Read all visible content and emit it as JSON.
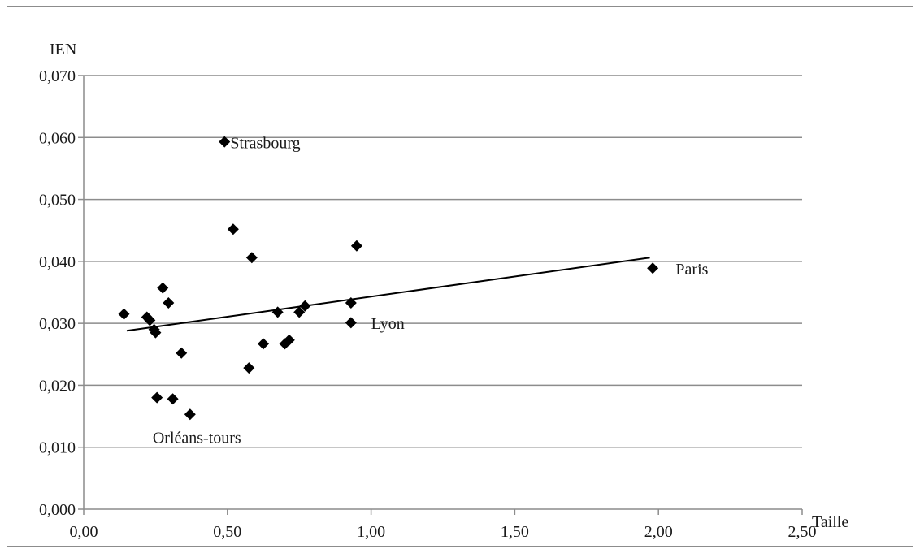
{
  "chart_data": {
    "type": "scatter",
    "title": "",
    "xlabel": "Taille",
    "ylabel": "IEN",
    "xlim": [
      0,
      2.5
    ],
    "ylim": [
      0,
      0.07
    ],
    "x_ticks": [
      0,
      0.5,
      1.0,
      1.5,
      2.0,
      2.5
    ],
    "x_tick_labels": [
      "0,00",
      "0,50",
      "1,00",
      "1,50",
      "2,00",
      "2,50"
    ],
    "y_ticks": [
      0,
      0.01,
      0.02,
      0.03,
      0.04,
      0.05,
      0.06,
      0.07
    ],
    "y_tick_labels": [
      "0,000",
      "0,010",
      "0,020",
      "0,030",
      "0,040",
      "0,050",
      "0,060",
      "0,070"
    ],
    "grid": "horizontal",
    "legend": "none",
    "marker": "diamond",
    "colors": {
      "points": "#000000",
      "grid": "#8c8c8c",
      "trendline": "#000000"
    },
    "points": [
      {
        "x": 0.14,
        "y": 0.0315
      },
      {
        "x": 0.22,
        "y": 0.031
      },
      {
        "x": 0.23,
        "y": 0.0305
      },
      {
        "x": 0.245,
        "y": 0.029
      },
      {
        "x": 0.25,
        "y": 0.0285
      },
      {
        "x": 0.255,
        "y": 0.018
      },
      {
        "x": 0.275,
        "y": 0.0357
      },
      {
        "x": 0.295,
        "y": 0.0333
      },
      {
        "x": 0.31,
        "y": 0.0178
      },
      {
        "x": 0.34,
        "y": 0.0252
      },
      {
        "x": 0.37,
        "y": 0.0153
      },
      {
        "x": 0.49,
        "y": 0.0593
      },
      {
        "x": 0.52,
        "y": 0.0452
      },
      {
        "x": 0.575,
        "y": 0.0228
      },
      {
        "x": 0.585,
        "y": 0.0406
      },
      {
        "x": 0.625,
        "y": 0.0267
      },
      {
        "x": 0.675,
        "y": 0.0318
      },
      {
        "x": 0.7,
        "y": 0.0267
      },
      {
        "x": 0.715,
        "y": 0.0273
      },
      {
        "x": 0.75,
        "y": 0.0318
      },
      {
        "x": 0.77,
        "y": 0.0328
      },
      {
        "x": 0.93,
        "y": 0.0333
      },
      {
        "x": 0.93,
        "y": 0.0301
      },
      {
        "x": 0.95,
        "y": 0.0425
      },
      {
        "x": 1.98,
        "y": 0.0389
      }
    ],
    "trendline": {
      "x": [
        0.15,
        1.97
      ],
      "y": [
        0.0288,
        0.0406
      ]
    },
    "annotations": [
      {
        "text": "Strasbourg",
        "x": 0.51,
        "y": 0.0583
      },
      {
        "text": "Paris",
        "x": 2.06,
        "y": 0.0379
      },
      {
        "text": "Lyon",
        "x": 1.0,
        "y": 0.0291
      },
      {
        "text": "Orléans-tours",
        "x": 0.24,
        "y": 0.0107
      }
    ]
  }
}
